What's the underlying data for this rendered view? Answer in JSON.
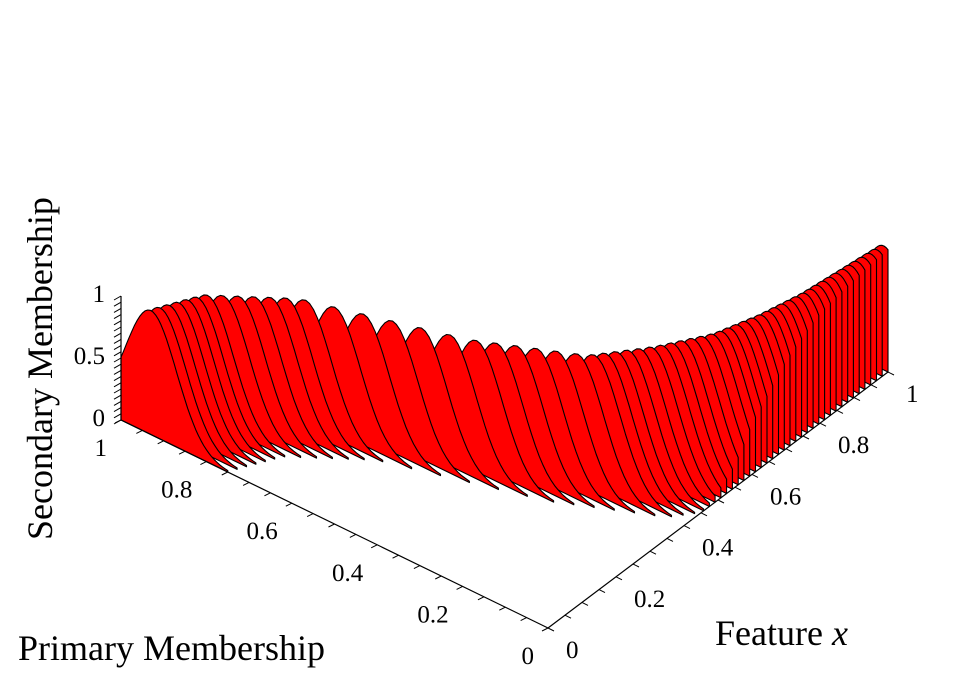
{
  "chart_data": {
    "type": "surface-3d",
    "title": "",
    "surface_color": "#ff0000",
    "edge_color": "#000000",
    "x_axis": {
      "label_text": "Feature ",
      "label_var": "x",
      "range": [
        0,
        1
      ],
      "ticks": [
        "0",
        "0.2",
        "0.4",
        "0.6",
        "0.8",
        "1"
      ],
      "tick_values": [
        0,
        0.2,
        0.4,
        0.6,
        0.8,
        1
      ]
    },
    "y_axis": {
      "label": "Primary Membership",
      "range": [
        0,
        1
      ],
      "ticks": [
        "0",
        "0.2",
        "0.4",
        "0.6",
        "0.8",
        "1"
      ],
      "tick_values": [
        0,
        0.2,
        0.4,
        0.6,
        0.8,
        1
      ]
    },
    "z_axis": {
      "label": "Secondary Membership",
      "range": [
        0,
        1
      ],
      "ticks": [
        "0",
        "0.5",
        "1"
      ],
      "tick_values": [
        0,
        0.5,
        1
      ]
    },
    "slices": {
      "count": 60,
      "x_start": 0,
      "x_end": 1,
      "primary_center": [
        {
          "x": 0.0,
          "u": 0.93
        },
        {
          "x": 0.1,
          "u": 0.88
        },
        {
          "x": 0.2,
          "u": 0.74
        },
        {
          "x": 0.3,
          "u": 0.42
        },
        {
          "x": 0.4,
          "u": 0.22
        },
        {
          "x": 0.5,
          "u": 0.14
        },
        {
          "x": 0.6,
          "u": 0.08
        },
        {
          "x": 0.7,
          "u": 0.05
        },
        {
          "x": 0.8,
          "u": 0.03
        },
        {
          "x": 0.9,
          "u": 0.02
        },
        {
          "x": 1.0,
          "u": 0.01
        }
      ],
      "spread": 0.06,
      "peak_secondary": 1.0
    }
  }
}
